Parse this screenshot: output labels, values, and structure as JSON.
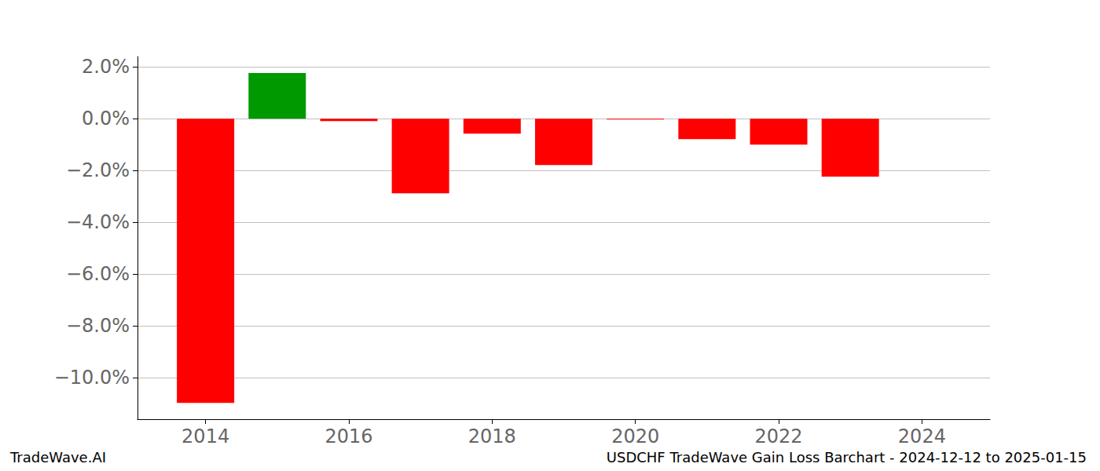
{
  "chart_data": {
    "type": "bar",
    "title": "USDCHF TradeWave Gain Loss Barchart - 2024-12-12 to 2025-01-15",
    "annotations": [
      "TradeWave.AI"
    ],
    "x": [
      2014,
      2015,
      2016,
      2017,
      2018,
      2019,
      2020,
      2021,
      2022,
      2023
    ],
    "values": [
      -10.97,
      1.76,
      -0.09,
      -2.88,
      -0.58,
      -1.79,
      -0.03,
      -0.79,
      -1.0,
      -2.24
    ],
    "colors": [
      "#ff0000",
      "#009900",
      "#ff0000",
      "#ff0000",
      "#ff0000",
      "#ff0000",
      "#ff0000",
      "#ff0000",
      "#ff0000",
      "#ff0000"
    ],
    "xlim": [
      2013.05,
      2024.95
    ],
    "xticks": [
      2014,
      2016,
      2018,
      2020,
      2022,
      2024
    ],
    "ylim": [
      -11.6,
      2.4
    ],
    "yticks": [
      {
        "value": -10,
        "label": "−10.0%"
      },
      {
        "value": -8,
        "label": "−8.0%"
      },
      {
        "value": -6,
        "label": "−6.0%"
      },
      {
        "value": -4,
        "label": "−4.0%"
      },
      {
        "value": -2,
        "label": "−2.0%"
      },
      {
        "value": 0,
        "label": "0.0%"
      },
      {
        "value": 2,
        "label": "2.0%"
      }
    ],
    "grid": true
  }
}
